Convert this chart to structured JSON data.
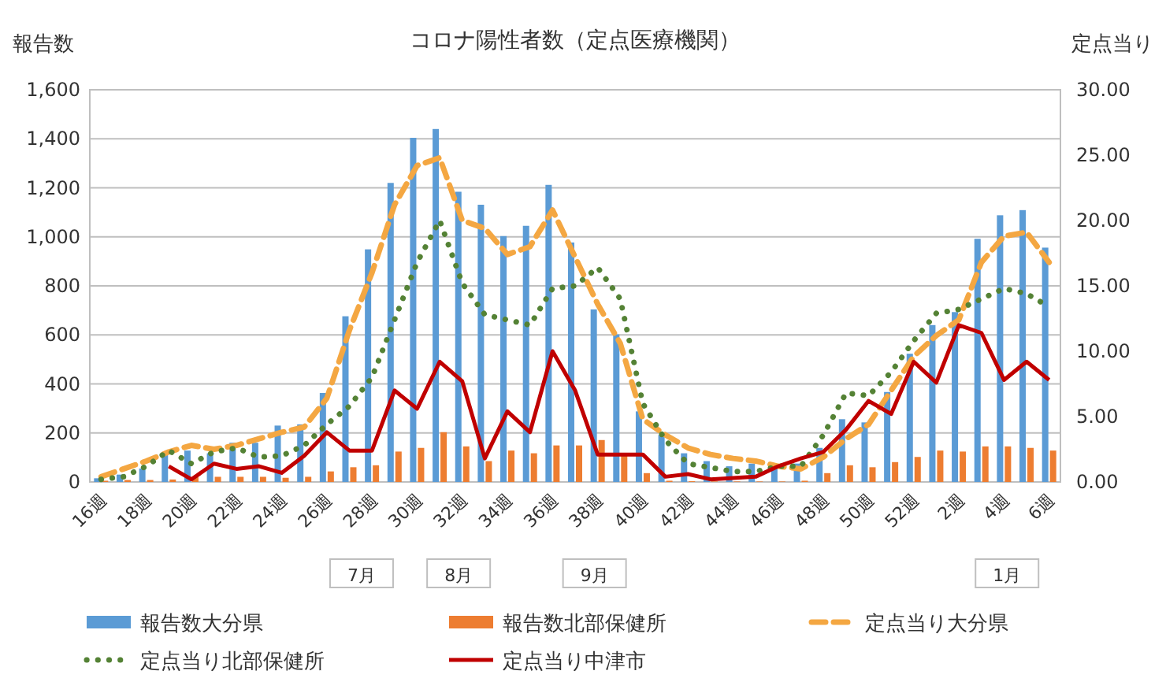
{
  "chart_data": {
    "type": "bar",
    "title": "コロナ陽性者数（定点医療機関）",
    "ylabel": "報告数",
    "y2label": "定点当り",
    "categories": [
      "16週",
      null,
      "18週",
      null,
      "20週",
      null,
      "22週",
      null,
      "24週",
      null,
      "26週",
      null,
      "28週",
      null,
      "30週",
      null,
      "32週",
      null,
      "34週",
      null,
      "36週",
      null,
      "38週",
      null,
      "40週",
      null,
      "42週",
      null,
      "44週",
      null,
      "46週",
      null,
      "48週",
      null,
      "50週",
      null,
      "52週",
      null,
      "2週",
      null,
      "4週",
      null,
      "6週"
    ],
    "ylim": [
      0,
      1600
    ],
    "yticks": [
      0,
      200,
      400,
      600,
      800,
      {
        "value": 1000,
        "label": "1,000"
      },
      {
        "value": 1200,
        "label": "1,200"
      },
      {
        "value": 1400,
        "label": "1,400"
      },
      {
        "value": 1600,
        "label": "1,600"
      }
    ],
    "y2lim": [
      0,
      30
    ],
    "y2ticks": [
      {
        "value": 0,
        "label": "0.00"
      },
      {
        "value": 5,
        "label": "5.00"
      },
      {
        "value": 10,
        "label": "10.00"
      },
      {
        "value": 15,
        "label": "15.00"
      },
      {
        "value": 20,
        "label": "20.00"
      },
      {
        "value": 25,
        "label": "25.00"
      },
      {
        "value": 30,
        "label": "30.00"
      }
    ],
    "grid": "y",
    "legend": "bottom",
    "series": [
      {
        "name": "報告数大分県",
        "color": "#5b9bd5",
        "values": [
          15,
          30,
          55,
          117,
          128,
          117,
          160,
          160,
          230,
          235,
          363,
          676,
          949,
          1220,
          1404,
          1440,
          1184,
          1131,
          1003,
          1045,
          1212,
          977,
          704,
          602,
          288,
          192,
          117,
          85,
          64,
          75,
          55,
          75,
          139,
          256,
          243,
          367,
          523,
          640,
          693,
          992,
          1088,
          1109,
          956
        ]
      },
      {
        "name": "報告数北部保健所",
        "color": "#ed7d31",
        "values": [
          5,
          8,
          8,
          10,
          21,
          21,
          21,
          21,
          17,
          21,
          43,
          60,
          68,
          124,
          139,
          203,
          145,
          85,
          128,
          117,
          149,
          149,
          171,
          117,
          36,
          5,
          3,
          2,
          2,
          2,
          2,
          5,
          36,
          68,
          60,
          81,
          102,
          128,
          124,
          145,
          145,
          139,
          128
        ]
      },
      {
        "name": "定点当り大分県",
        "type": "line",
        "axis": "y2",
        "line_style": "dashed",
        "color": "#f4a742",
        "values": [
          0.4,
          1.0,
          1.6,
          2.3,
          2.8,
          2.5,
          2.8,
          3.3,
          3.8,
          4.2,
          6.4,
          11.6,
          16.0,
          21.2,
          24.2,
          24.8,
          20.0,
          19.4,
          17.4,
          18.0,
          20.8,
          17.2,
          13.6,
          10.6,
          4.8,
          3.6,
          2.6,
          2.1,
          1.8,
          1.6,
          1.2,
          1.0,
          1.9,
          3.3,
          4.4,
          7.0,
          9.6,
          11.2,
          12.4,
          16.8,
          18.8,
          19.1,
          16.8
        ]
      },
      {
        "name": "定点当り北部保健所",
        "type": "line",
        "axis": "y2",
        "line_style": "dotted",
        "color": "#548235",
        "values": [
          0.2,
          0.4,
          1.2,
          2.4,
          1.4,
          2.3,
          2.6,
          1.9,
          2.0,
          2.8,
          4.4,
          5.8,
          8.0,
          12.4,
          16.8,
          20.0,
          15.2,
          12.8,
          12.4,
          12.0,
          14.8,
          15.0,
          16.4,
          14.0,
          6.0,
          3.2,
          1.4,
          1.1,
          0.8,
          0.8,
          1.2,
          1.2,
          3.6,
          6.8,
          6.6,
          8.4,
          10.8,
          12.9,
          13.2,
          14.0,
          14.8,
          14.4,
          13.4
        ]
      },
      {
        "name": "定点当り中津市",
        "type": "line",
        "axis": "y2",
        "line_style": "solid",
        "color": "#c00000",
        "values": [
          null,
          null,
          null,
          1.2,
          0.2,
          1.4,
          1.0,
          1.2,
          0.7,
          2.0,
          3.8,
          2.4,
          2.4,
          7.0,
          5.6,
          9.2,
          7.7,
          1.8,
          5.4,
          3.8,
          10.0,
          7.0,
          2.1,
          2.1,
          2.1,
          0.4,
          0.6,
          0.2,
          0.3,
          0.4,
          1.2,
          1.8,
          2.3,
          4.0,
          6.2,
          5.2,
          9.2,
          7.6,
          12.0,
          11.4,
          7.8,
          9.2,
          7.8
        ]
      }
    ],
    "annotations": [
      "7月",
      "8月",
      "9月",
      "1月"
    ]
  }
}
